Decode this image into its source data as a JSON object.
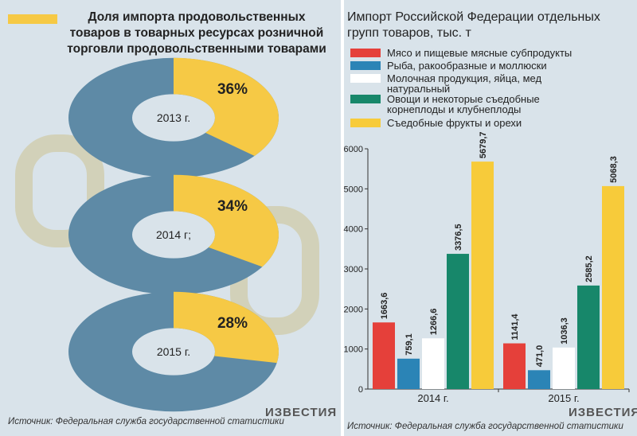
{
  "chart_data": [
    {
      "type": "donut",
      "title": "Доля импорта продовольственных товаров в товарных ресурсах розничной торговли продовольственными товарами",
      "color": "#f6c945",
      "rest_color": "#5e8aa6",
      "donuts": [
        {
          "label": "2013 г.",
          "value": 36,
          "value_label": "36%"
        },
        {
          "label": "2014 г;",
          "value": 34,
          "value_label": "34%"
        },
        {
          "label": "2015 г.",
          "value": 28,
          "value_label": "28%"
        }
      ]
    },
    {
      "type": "bar",
      "title": "Импорт Российской Федерации отдельных групп товаров, тыс. т",
      "categories": [
        "2014 г.",
        "2015 г."
      ],
      "ylim": [
        0,
        6000
      ],
      "yticks": [
        0,
        1000,
        2000,
        3000,
        4000,
        5000,
        6000
      ],
      "series": [
        {
          "name": "Мясо и пищевые мясные субпродукты",
          "color": "#e5403a",
          "values": [
            1663.6,
            1141.4
          ],
          "value_labels": [
            "1663,6",
            "1141,4"
          ]
        },
        {
          "name": "Рыба, ракообразные и моллюски",
          "color": "#2b84b6",
          "values": [
            759.1,
            471.0
          ],
          "value_labels": [
            "759,1",
            "471,0"
          ]
        },
        {
          "name": "Молочная продукция, яйца, мед натуральный",
          "color": "#ffffff",
          "values": [
            1266.6,
            1036.3
          ],
          "value_labels": [
            "1266,6",
            "1036,3"
          ]
        },
        {
          "name": "Овощи и некоторые съедобные корнеплоды и клубнеплоды",
          "color": "#17876a",
          "values": [
            3376.5,
            2585.2
          ],
          "value_labels": [
            "3376,5",
            "2585,2"
          ]
        },
        {
          "name": "Съедобные фрукты и орехи",
          "color": "#f7cb3a",
          "values": [
            5679.7,
            5068.3
          ],
          "value_labels": [
            "5679,7",
            "5068,3"
          ]
        }
      ]
    }
  ],
  "source": "Источник: Федеральная служба государственной статистики",
  "logo": "ИЗВЕСТИЯ"
}
